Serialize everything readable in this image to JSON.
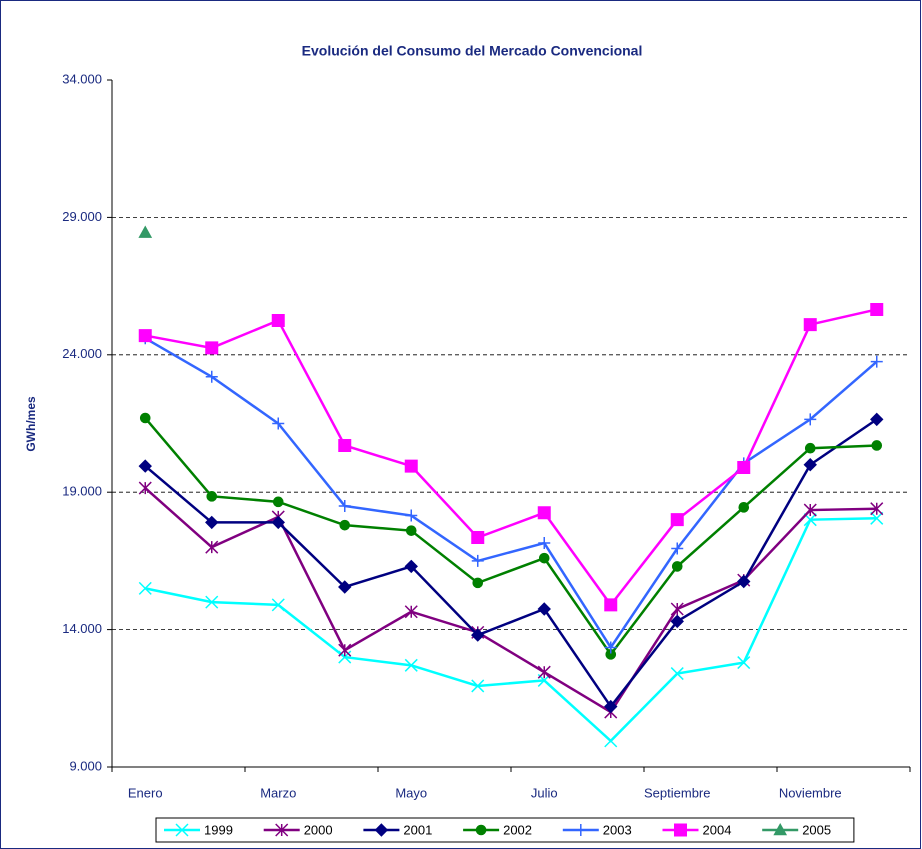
{
  "chart_data": {
    "type": "line",
    "title": "Evolución del Consumo del Mercado Convencional",
    "y_label": "GWh/mes",
    "categories": [
      "Enero",
      null,
      "Marzo",
      null,
      "Mayo",
      null,
      "Julio",
      null,
      "Septiembre",
      null,
      "Noviembre",
      null
    ],
    "ylim": [
      9000,
      34000
    ],
    "yticks": [
      {
        "value": 9000,
        "label": "9.000"
      },
      {
        "value": 14000,
        "label": "14.000"
      },
      {
        "value": 19000,
        "label": "19.000"
      },
      {
        "value": 24000,
        "label": "24.000"
      },
      {
        "value": 29000,
        "label": "29.000"
      },
      {
        "value": 34000,
        "label": "34.000"
      }
    ],
    "grid": true,
    "legend": "bottom",
    "series": [
      {
        "name": "1999",
        "color": "#00ffff",
        "marker": "x",
        "values": [
          15500,
          15000,
          14900,
          13000,
          12700,
          11950,
          12150,
          9950,
          12400,
          12800,
          18000,
          18050
        ]
      },
      {
        "name": "2000",
        "color": "#800080",
        "marker": "star",
        "values": [
          19150,
          17000,
          18100,
          13250,
          14650,
          13900,
          12450,
          11000,
          14750,
          15800,
          18350,
          18400
        ]
      },
      {
        "name": "2001",
        "color": "#000080",
        "marker": "diamond",
        "values": [
          19950,
          17900,
          17900,
          15550,
          16300,
          13800,
          14750,
          11200,
          14300,
          15750,
          20000,
          21650
        ]
      },
      {
        "name": "2002",
        "color": "#008000",
        "marker": "circle",
        "values": [
          21700,
          18850,
          18650,
          17800,
          17600,
          15700,
          16600,
          13100,
          16300,
          18450,
          20600,
          20700
        ]
      },
      {
        "name": "2003",
        "color": "#3366ff",
        "marker": "plus",
        "values": [
          24600,
          23200,
          21500,
          18500,
          18150,
          16500,
          17150,
          13350,
          16950,
          20050,
          21650,
          23750
        ]
      },
      {
        "name": "2004",
        "color": "#ff00ff",
        "marker": "square",
        "values": [
          24700,
          24250,
          25250,
          20700,
          19950,
          17350,
          18250,
          14900,
          18000,
          19900,
          25100,
          25650
        ]
      },
      {
        "name": "2005",
        "color": "#339966",
        "marker": "triangle",
        "values": [
          28450,
          null,
          null,
          null,
          null,
          null,
          null,
          null,
          null,
          null,
          null,
          null
        ]
      }
    ]
  }
}
